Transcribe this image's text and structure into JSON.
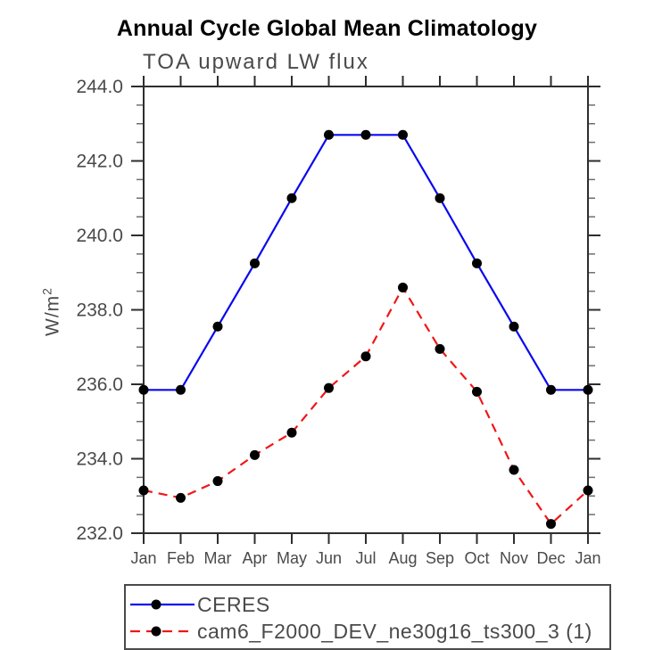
{
  "chart_data": {
    "type": "line",
    "title": "Annual Cycle Global Mean Climatology",
    "subtitle": "TOA upward LW flux",
    "ylabel": "W/m^2",
    "ylabel_base": "W/m",
    "ylabel_sup": "2",
    "xlabel": "",
    "categories": [
      "Jan",
      "Feb",
      "Mar",
      "Apr",
      "May",
      "Jun",
      "Jul",
      "Aug",
      "Sep",
      "Oct",
      "Nov",
      "Dec",
      "Jan"
    ],
    "ylim": [
      232.0,
      244.0
    ],
    "ytick_step": 2.0,
    "ytick_minor_step": 0.5,
    "ytick_labels": [
      "232.0",
      "234.0",
      "236.0",
      "238.0",
      "240.0",
      "242.0",
      "244.0"
    ],
    "grid": false,
    "legend_position": "bottom-left",
    "marker": "filled-circle",
    "marker_color": "#000000",
    "axis_color": "#2e2e2e",
    "minor_tick_color": "#6f6f6f",
    "text_color": "#4a4a4a",
    "series": [
      {
        "name": "CERES",
        "line_style": "solid",
        "color": "#0909f0",
        "values": [
          235.85,
          235.85,
          237.55,
          239.25,
          241.0,
          242.7,
          242.7,
          242.7,
          241.0,
          239.25,
          237.55,
          235.85,
          235.85
        ]
      },
      {
        "name": "cam6_F2000_DEV_ne30g16_ts300_3 (1)",
        "line_style": "dashed",
        "color": "#f01616",
        "values": [
          233.15,
          232.95,
          233.4,
          234.1,
          234.7,
          235.9,
          236.75,
          238.6,
          236.95,
          235.8,
          233.7,
          232.25,
          233.15
        ]
      }
    ]
  }
}
